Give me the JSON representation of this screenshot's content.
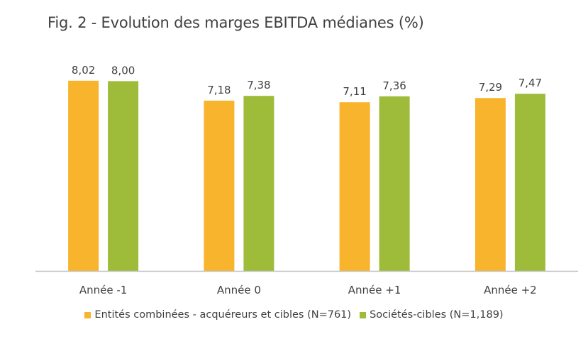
{
  "chart_data": {
    "type": "bar",
    "title": "Fig. 2 - Evolution des marges EBITDA médianes (%)",
    "categories": [
      "Année -1",
      "Année 0",
      "Année +1",
      "Année +2"
    ],
    "series": [
      {
        "name": "Entités combinées - acquéreurs et cibles (N=761)",
        "values": [
          8.02,
          7.18,
          7.11,
          7.29
        ],
        "labels": [
          "8,02",
          "7,18",
          "7,11",
          "7,29"
        ],
        "color": "#F9B42D"
      },
      {
        "name": "Sociétés-cibles (N=1,189)",
        "values": [
          8.0,
          7.38,
          7.36,
          7.47
        ],
        "labels": [
          "8,00",
          "7,38",
          "7,36",
          "7,47"
        ],
        "color": "#9EBB3A"
      }
    ],
    "ylim": [
      0,
      8.85
    ],
    "grid": false,
    "legend_position": "bottom",
    "axis_color": "#BFBFBF"
  }
}
